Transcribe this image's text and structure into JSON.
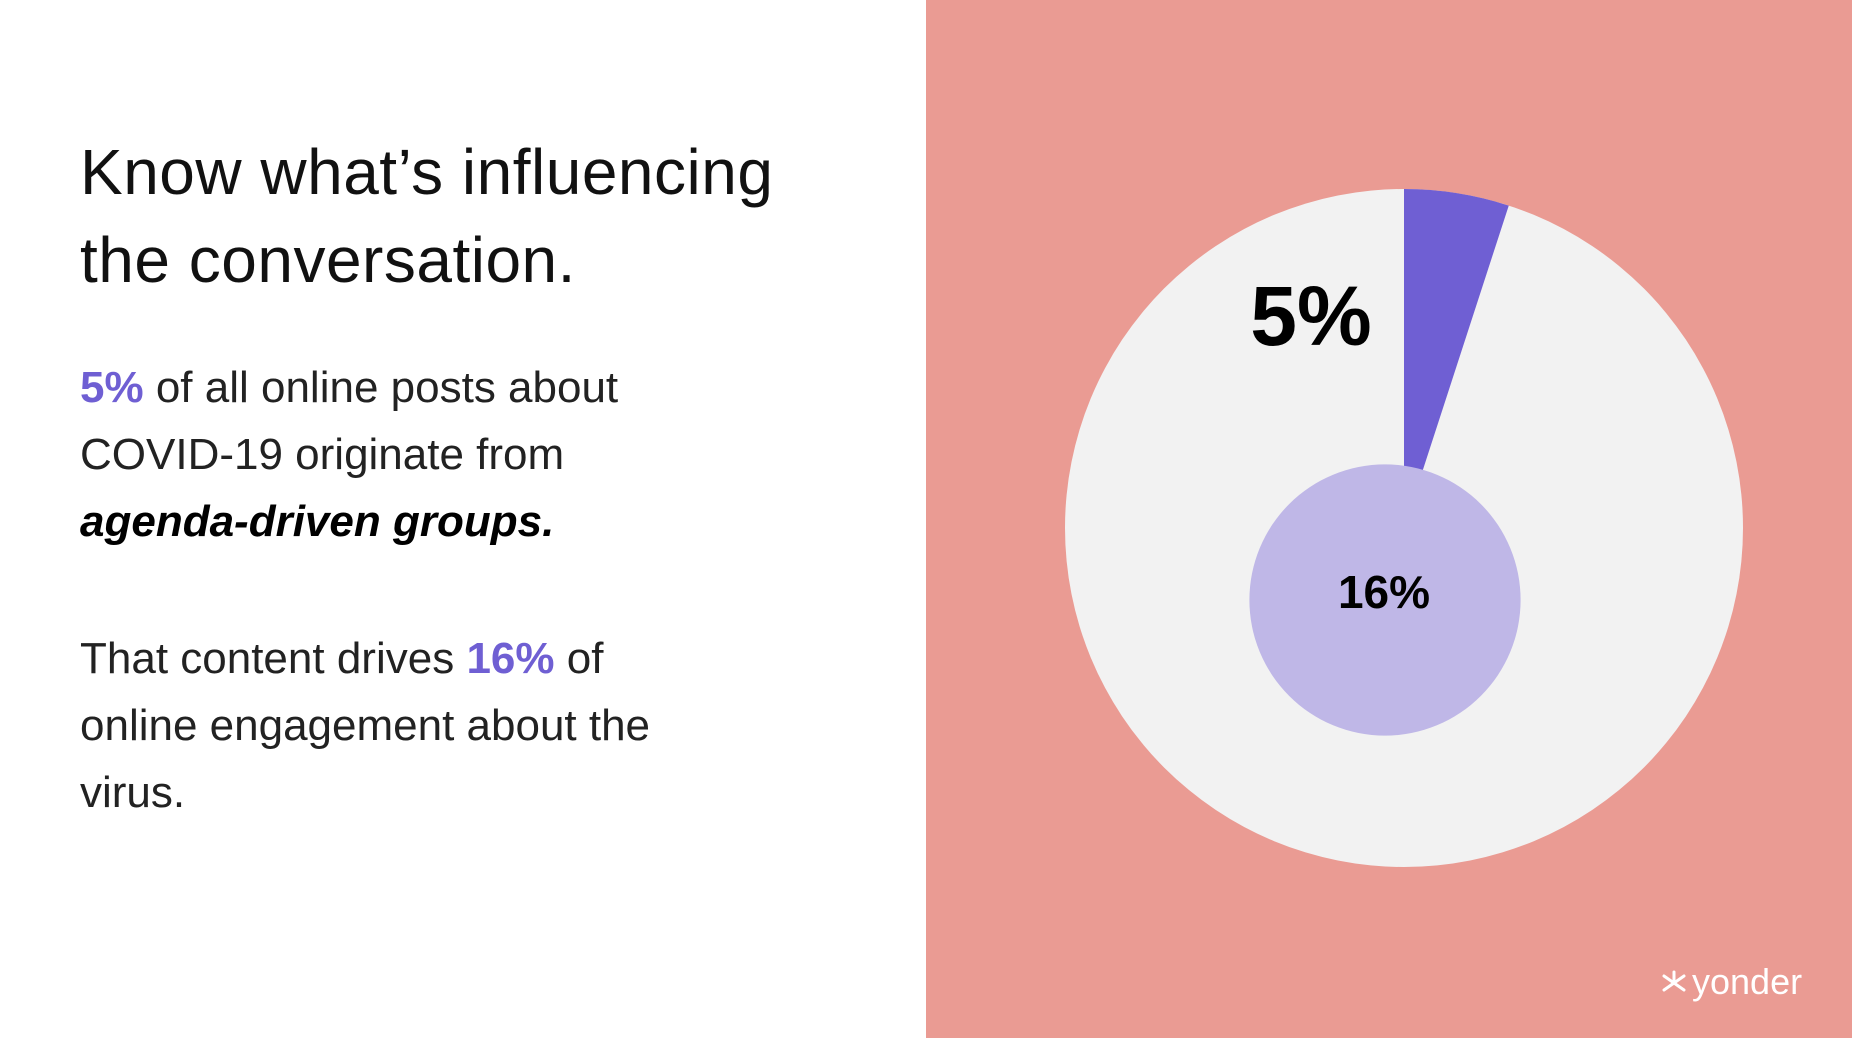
{
  "heading": {
    "title_line_1": "Know what’s influencing",
    "title_line_2": "the conversation."
  },
  "paragraph_1": {
    "rest_line_1": "of all online posts about",
    "line_2": "COVID-19 originate from",
    "emphasis": "agenda-driven groups."
  },
  "paragraph_2": {
    "line_1_start": "That content drives",
    "line_1_end": "of",
    "line_2": "online engagement about the",
    "line_3": "virus."
  },
  "logo": "yonder",
  "chart_data": {
    "type": "pie",
    "values": [
      5,
      16
    ],
    "value_labels": [
      "5%",
      "16%"
    ],
    "colors": [
      "#6f5fd3",
      "#bfb7e7"
    ],
    "background_color": "#f2f2f2"
  }
}
